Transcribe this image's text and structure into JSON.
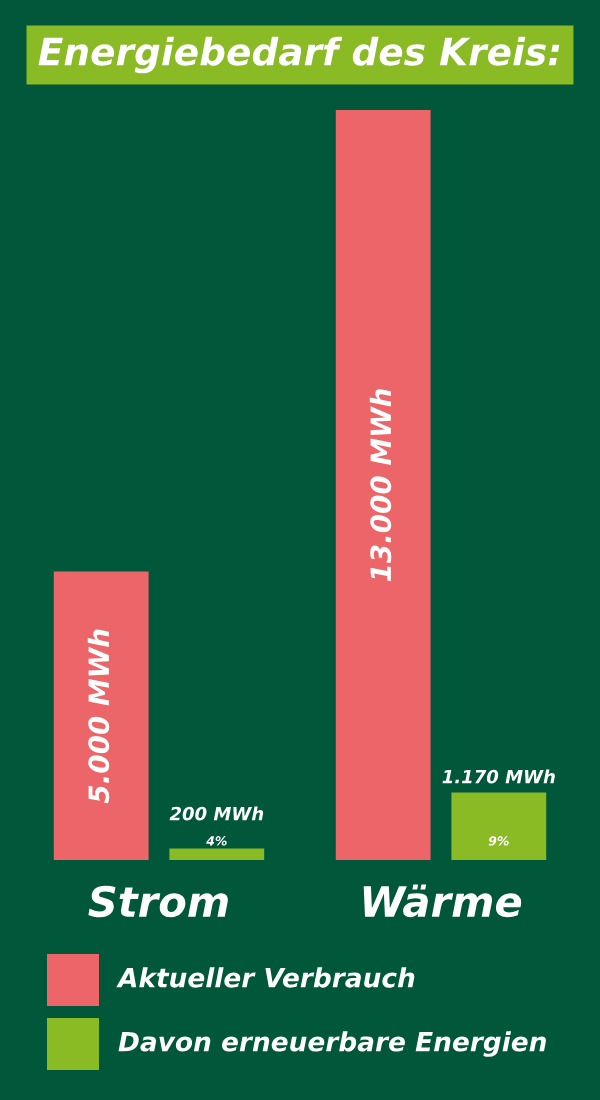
{
  "chart_data": {
    "type": "bar",
    "title": "Energiebedarf des Kreis:",
    "categories": [
      "Strom",
      "Wärme"
    ],
    "series": [
      {
        "name": "Aktueller Verbrauch",
        "color": "#ec6569",
        "values": [
          5000,
          13000
        ],
        "value_labels": [
          "5.000 MWh",
          "13.000 MWh"
        ]
      },
      {
        "name": "Davon erneuerbare Energien",
        "color": "#8aba24",
        "values": [
          200,
          1170
        ],
        "value_labels": [
          "200 MWh",
          "1.170 MWh"
        ]
      }
    ],
    "annotations": [
      "4%",
      "9%"
    ],
    "legend": "bottom",
    "grid": false
  }
}
